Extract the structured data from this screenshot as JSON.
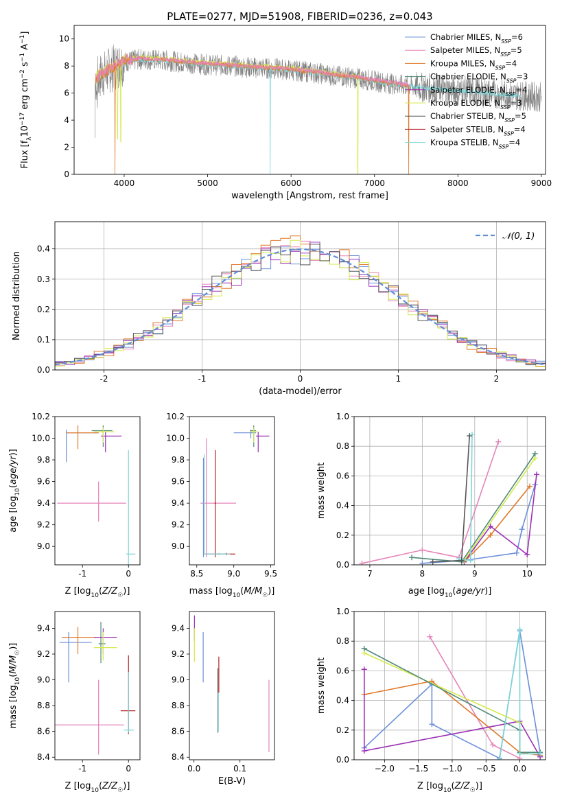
{
  "figure_title": "PLATE=0277, MJD=51908, FIBERID=0236, z=0.043",
  "colors": {
    "Chabrier MILES": "#6a8fd8",
    "Salpeter MILES": "#e584b8",
    "Kroupa MILES": "#e0782a",
    "Chabrier ELODIE": "#4f8a78",
    "Salpeter ELODIE": "#9a30b4",
    "Kroupa ELODIE": "#d4ea4c",
    "Chabrier STELIB": "#555555",
    "Salpeter STELIB": "#b22222",
    "Kroupa STELIB": "#7fd6d8"
  },
  "chart_data": [
    {
      "id": "spectrum",
      "type": "line",
      "title": "PLATE=0277, MJD=51908, FIBERID=0236, z=0.043",
      "xlabel": "wavelength [Angstrom, rest frame]",
      "ylabel": "Flux [f_λ 10^-17 erg cm^-2 s^-1 A^-1]",
      "xlim": [
        3400,
        9050
      ],
      "ylim": [
        0,
        11
      ],
      "xticks": [
        4000,
        5000,
        6000,
        7000,
        8000,
        9000
      ],
      "yticks": [
        0,
        2,
        4,
        6,
        8,
        10
      ],
      "grid": false,
      "legend_position": "top-right",
      "legend": [
        {
          "label": "Chabrier MILES, N",
          "sub": "SSP",
          "suffix": "=6",
          "model": "Chabrier MILES"
        },
        {
          "label": "Salpeter MILES, N",
          "sub": "SSP",
          "suffix": "=5",
          "model": "Salpeter MILES"
        },
        {
          "label": "Kroupa MILES, N",
          "sub": "SSP",
          "suffix": "=4",
          "model": "Kroupa MILES"
        },
        {
          "label": "Chabrier ELODIE, N",
          "sub": "SSP",
          "suffix": "=3",
          "model": "Chabrier ELODIE"
        },
        {
          "label": "Salpeter ELODIE, N",
          "sub": "SSP",
          "suffix": "=4",
          "model": "Salpeter ELODIE"
        },
        {
          "label": "Kroupa ELODIE, N",
          "sub": "SSP",
          "suffix": "=3",
          "model": "Kroupa ELODIE"
        },
        {
          "label": "Chabrier STELIB, N",
          "sub": "SSP",
          "suffix": "=5",
          "model": "Chabrier STELIB"
        },
        {
          "label": "Salpeter STELIB, N",
          "sub": "SSP",
          "suffix": "=4",
          "model": "Salpeter STELIB"
        },
        {
          "label": "Kroupa STELIB, N",
          "sub": "SSP",
          "suffix": "=4",
          "model": "Kroupa STELIB"
        }
      ],
      "data_continuum": [
        [
          3650,
          7.0
        ],
        [
          3800,
          7.6
        ],
        [
          4000,
          8.3
        ],
        [
          4200,
          8.5
        ],
        [
          4500,
          8.4
        ],
        [
          4800,
          8.2
        ],
        [
          5000,
          8.1
        ],
        [
          5300,
          8.0
        ],
        [
          5500,
          7.9
        ],
        [
          5800,
          7.8
        ],
        [
          6000,
          7.7
        ],
        [
          6300,
          7.5
        ],
        [
          6500,
          7.3
        ],
        [
          6800,
          7.1
        ],
        [
          7000,
          6.9
        ],
        [
          7300,
          6.6
        ],
        [
          7600,
          6.4
        ],
        [
          7900,
          6.2
        ],
        [
          8200,
          6.1
        ],
        [
          8500,
          5.9
        ],
        [
          8800,
          5.8
        ],
        [
          9000,
          5.7
        ]
      ],
      "data_noise_amplitude": 0.8,
      "model_series": [
        {
          "model": "Kroupa STELIB",
          "x_range": [
            3650,
            8750
          ],
          "offset": 0.0,
          "drops": [
            [
              5750,
              0
            ]
          ]
        },
        {
          "model": "Kroupa ELODIE",
          "x_range": [
            3650,
            6810
          ],
          "offset": 0.15,
          "drops": [
            [
              3920,
              2.6
            ],
            [
              3960,
              2.4
            ],
            [
              6800,
              0
            ]
          ]
        },
        {
          "model": "Kroupa MILES",
          "x_range": [
            3650,
            7420
          ],
          "offset": 0.05,
          "drops": [
            [
              3890,
              0
            ],
            [
              7410,
              0
            ]
          ]
        },
        {
          "model": "Salpeter MILES",
          "x_range": [
            3650,
            7420
          ],
          "offset": 0.1,
          "drops": []
        }
      ]
    },
    {
      "id": "residual_histogram",
      "type": "histogram",
      "xlabel": "(data-model)/error",
      "ylabel": "Normed distribution",
      "xlim": [
        -2.5,
        2.5
      ],
      "ylim": [
        0,
        0.49
      ],
      "xticks": [
        -2,
        -1,
        0,
        1,
        2
      ],
      "yticks": [
        0.0,
        0.1,
        0.2,
        0.3,
        0.4
      ],
      "grid": true,
      "legend_position": "top-right",
      "reference_curve": {
        "label": "𝒩(0, 1)",
        "mean": 0,
        "sigma": 1,
        "style": "dashed"
      },
      "bin_width": 0.1,
      "bin_start": -2.5,
      "histograms": [
        {
          "model": "Chabrier MILES",
          "jitter_seed": 1
        },
        {
          "model": "Salpeter MILES",
          "jitter_seed": 2
        },
        {
          "model": "Kroupa MILES",
          "jitter_seed": 3
        },
        {
          "model": "Salpeter ELODIE",
          "jitter_seed": 4
        },
        {
          "model": "Kroupa ELODIE",
          "jitter_seed": 5
        },
        {
          "model": "Chabrier STELIB",
          "jitter_seed": 6
        }
      ]
    },
    {
      "id": "age_vs_Z",
      "type": "errorbar",
      "xlabel": "Z [log10(Z/Z☉)]",
      "ylabel": "age  [log10(age/yr)]",
      "xlim": [
        -1.6,
        0.25
      ],
      "ylim": [
        8.83,
        10.2
      ],
      "xticks": [
        -1,
        0
      ],
      "yticks": [
        9.0,
        9.2,
        9.4,
        9.6,
        9.8,
        10.0,
        10.2
      ],
      "points": [
        {
          "model": "Chabrier MILES",
          "x": -1.35,
          "xerr": [
            0.0,
            0.7
          ],
          "y": 10.05,
          "yerr": [
            0.27,
            0.03
          ]
        },
        {
          "model": "Kroupa MILES",
          "x": -1.1,
          "xerr": [
            0.25,
            0.45
          ],
          "y": 10.05,
          "yerr": [
            0.15,
            0.07
          ]
        },
        {
          "model": "Chabrier ELODIE",
          "x": -0.55,
          "xerr": [
            0.25,
            0.2
          ],
          "y": 10.07,
          "yerr": [
            0.15,
            0.05
          ]
        },
        {
          "model": "Salpeter ELODIE",
          "x": -0.5,
          "xerr": [
            0.1,
            0.35
          ],
          "y": 10.02,
          "yerr": [
            0.15,
            0.04
          ]
        },
        {
          "model": "Kroupa ELODIE",
          "x": -0.55,
          "xerr": [
            0.2,
            0.25
          ],
          "y": 10.06,
          "yerr": [
            0.1,
            0.04
          ]
        },
        {
          "model": "Salpeter MILES",
          "x": -0.65,
          "xerr": [
            0.9,
            0.6
          ],
          "y": 9.4,
          "yerr": [
            0.17,
            0.2
          ]
        },
        {
          "model": "Kroupa STELIB",
          "x": 0.0,
          "xerr": [
            0.05,
            0.15
          ],
          "y": 8.93,
          "yerr": [
            0.1,
            0.96
          ]
        }
      ]
    },
    {
      "id": "age_vs_mass",
      "type": "errorbar",
      "xlabel": "mass [log10(M/M☉)]",
      "ylabel": "",
      "xlim": [
        8.4,
        9.55
      ],
      "ylim": [
        8.83,
        10.2
      ],
      "xticks": [
        8.5,
        9.0,
        9.5
      ],
      "yticks": [
        9.0,
        9.2,
        9.4,
        9.6,
        9.8,
        10.0,
        10.2
      ],
      "points": [
        {
          "model": "Chabrier MILES",
          "x": 9.23,
          "xerr": [
            0.23,
            0.07
          ],
          "y": 10.05,
          "yerr": [
            0.05,
            0.03
          ]
        },
        {
          "model": "Chabrier ELODIE",
          "x": 9.27,
          "xerr": [
            0.05,
            0.03
          ],
          "y": 10.07,
          "yerr": [
            0.15,
            0.05
          ]
        },
        {
          "model": "Salpeter ELODIE",
          "x": 9.33,
          "xerr": [
            0.03,
            0.15
          ],
          "y": 10.02,
          "yerr": [
            0.15,
            0.04
          ]
        },
        {
          "model": "Kroupa ELODIE",
          "x": 9.27,
          "xerr": [
            0.05,
            0.05
          ],
          "y": 10.06,
          "yerr": [
            0.1,
            0.04
          ]
        },
        {
          "model": "Salpeter MILES",
          "x": 8.63,
          "xerr": [
            0.08,
            0.4
          ],
          "y": 9.4,
          "yerr": [
            0.5,
            0.6
          ]
        },
        {
          "model": "Chabrier MILES",
          "x": 8.59,
          "xerr": [
            0.01,
            0.01
          ],
          "y": 9.4,
          "yerr": [
            0.5,
            0.42
          ]
        },
        {
          "model": "Salpeter STELIB",
          "x": 8.75,
          "xerr": [
            0.01,
            0.01
          ],
          "y": 9.4,
          "yerr": [
            0.5,
            0.49
          ]
        },
        {
          "model": "Salpeter STELIB",
          "x": 8.9,
          "xerr": [
            0.3,
            0.12
          ],
          "y": 8.93,
          "yerr": [
            0.01,
            0.01
          ]
        },
        {
          "model": "Kroupa STELIB",
          "x": 8.8,
          "xerr": [
            0.2,
            0.15
          ],
          "y": 8.93,
          "yerr": [
            0.01,
            0.01
          ]
        },
        {
          "model": "Kroupa STELIB",
          "x": 8.6,
          "xerr": [
            0.01,
            0.01
          ],
          "y": 9.4,
          "yerr": [
            0.47,
            0.45
          ]
        }
      ]
    },
    {
      "id": "weight_vs_age",
      "type": "line",
      "xlabel": "age  [log10(age/yr)]",
      "ylabel": "mass weight",
      "xlim": [
        6.7,
        10.35
      ],
      "ylim": [
        0,
        1
      ],
      "xticks": [
        7,
        8,
        9,
        10
      ],
      "yticks": [
        0.0,
        0.2,
        0.4,
        0.6,
        0.8,
        1.0
      ],
      "grid": true,
      "series": [
        {
          "model": "Salpeter MILES",
          "x": [
            6.85,
            8.0,
            8.7,
            9.45
          ],
          "y": [
            0.01,
            0.1,
            0.05,
            0.83
          ]
        },
        {
          "model": "Chabrier MILES",
          "x": [
            8.0,
            8.8,
            9.8,
            9.9,
            10.15
          ],
          "y": [
            0.01,
            0.03,
            0.08,
            0.24,
            0.54
          ]
        },
        {
          "model": "Kroupa MILES",
          "x": [
            8.8,
            9.3,
            10.05
          ],
          "y": [
            0.02,
            0.2,
            0.53
          ]
        },
        {
          "model": "Salpeter ELODIE",
          "x": [
            8.8,
            9.3,
            10.0,
            10.18
          ],
          "y": [
            0.02,
            0.26,
            0.07,
            0.61
          ]
        },
        {
          "model": "Kroupa ELODIE",
          "x": [
            8.8,
            10.15
          ],
          "y": [
            0.03,
            0.72
          ]
        },
        {
          "model": "Chabrier ELODIE",
          "x": [
            7.8,
            8.75,
            10.15
          ],
          "y": [
            0.05,
            0.02,
            0.75
          ]
        },
        {
          "model": "Kroupa STELIB",
          "x": [
            8.7,
            8.92,
            8.95
          ],
          "y": [
            0.04,
            0.03,
            0.88
          ]
        },
        {
          "model": "Chabrier STELIB",
          "x": [
            8.2,
            8.75,
            8.9
          ],
          "y": [
            0.02,
            0.03,
            0.87
          ]
        }
      ]
    },
    {
      "id": "mass_vs_Z",
      "type": "errorbar",
      "xlabel": "Z [log10(Z/Z☉)]",
      "ylabel": "mass [log10(M/M☉)]",
      "xlim": [
        -1.6,
        0.25
      ],
      "ylim": [
        8.38,
        9.53
      ],
      "xticks": [
        -1,
        0
      ],
      "yticks": [
        8.4,
        8.6,
        8.8,
        9.0,
        9.2,
        9.4
      ],
      "points": [
        {
          "model": "Chabrier MILES",
          "x": -1.3,
          "xerr": [
            0.2,
            0.5
          ],
          "y": 9.29,
          "yerr": [
            0.31,
            0.08
          ]
        },
        {
          "model": "Kroupa MILES",
          "x": -1.1,
          "xerr": [
            0.35,
            0.4
          ],
          "y": 9.33,
          "yerr": [
            0.13,
            0.08
          ]
        },
        {
          "model": "Chabrier ELODIE",
          "x": -0.6,
          "xerr": [
            0.05,
            0.1
          ],
          "y": 9.28,
          "yerr": [
            0.15,
            0.17
          ]
        },
        {
          "model": "Salpeter ELODIE",
          "x": -0.55,
          "xerr": [
            0.2,
            0.3
          ],
          "y": 9.33,
          "yerr": [
            0.13,
            0.07
          ]
        },
        {
          "model": "Kroupa ELODIE",
          "x": -0.55,
          "xerr": [
            0.2,
            0.3
          ],
          "y": 9.25,
          "yerr": [
            0.1,
            0.12
          ]
        },
        {
          "model": "Salpeter MILES",
          "x": -0.65,
          "xerr": [
            0.95,
            0.55
          ],
          "y": 8.65,
          "yerr": [
            0.23,
            0.35
          ]
        },
        {
          "model": "Salpeter STELIB",
          "x": 0.0,
          "xerr": [
            0.17,
            0.15
          ],
          "y": 8.76,
          "yerr": [
            0.18,
            0.43
          ]
        },
        {
          "model": "Kroupa STELIB",
          "x": 0.0,
          "xerr": [
            0.1,
            0.12
          ],
          "y": 8.61,
          "yerr": [
            0.02,
            0.45
          ]
        }
      ]
    },
    {
      "id": "mass_vs_EBV",
      "type": "errorbar",
      "xlabel": "E(B-V)",
      "ylabel": "",
      "xlim": [
        -0.01,
        0.175
      ],
      "ylim": [
        8.38,
        9.53
      ],
      "xticks": [
        0.0,
        0.1
      ],
      "yticks": [
        8.4,
        8.6,
        8.8,
        9.0,
        9.2,
        9.4
      ],
      "points": [
        {
          "model": "Salpeter ELODIE",
          "x": 0.001,
          "xerr": [
            0,
            0
          ],
          "y": 9.4,
          "yerr": [
            0.1,
            0.1
          ]
        },
        {
          "model": "Kroupa ELODIE",
          "x": 0.001,
          "xerr": [
            0,
            0
          ],
          "y": 9.28,
          "yerr": [
            0.14,
            0.12
          ]
        },
        {
          "model": "Chabrier MILES",
          "x": 0.02,
          "xerr": [
            0,
            0
          ],
          "y": 9.17,
          "yerr": [
            0.19,
            0.2
          ]
        },
        {
          "model": "Chabrier STELIB",
          "x": 0.052,
          "xerr": [
            0,
            0
          ],
          "y": 8.84,
          "yerr": [
            0.25,
            0.25
          ]
        },
        {
          "model": "Salpeter STELIB",
          "x": 0.054,
          "xerr": [
            0,
            0
          ],
          "y": 9.0,
          "yerr": [
            0.1,
            0.18
          ]
        },
        {
          "model": "Kroupa STELIB",
          "x": 0.053,
          "xerr": [
            0,
            0
          ],
          "y": 8.75,
          "yerr": [
            0.15,
            0.15
          ]
        },
        {
          "model": "Salpeter MILES",
          "x": 0.163,
          "xerr": [
            0,
            0
          ],
          "y": 8.72,
          "yerr": [
            0.28,
            0.28
          ]
        }
      ]
    },
    {
      "id": "weight_vs_Z",
      "type": "line",
      "xlabel": "Z [log10(Z/Z☉)]",
      "ylabel": "mass weight",
      "xlim": [
        -2.45,
        0.38
      ],
      "ylim": [
        0,
        1
      ],
      "xticks": [
        -2.0,
        -1.5,
        -1.0,
        -0.5,
        0.0
      ],
      "yticks": [
        0.0,
        0.2,
        0.4,
        0.6,
        0.8,
        1.0
      ],
      "grid": true,
      "series": [
        {
          "model": "Chabrier MILES",
          "x": [
            -2.3,
            -1.3,
            -1.3,
            -0.3,
            0.0,
            0.3
          ],
          "y": [
            0.08,
            0.51,
            0.24,
            0.01,
            0.87,
            0.05
          ]
        },
        {
          "model": "Salpeter MILES",
          "x": [
            -1.33,
            -0.4,
            0.0
          ],
          "y": [
            0.83,
            0.1,
            0.01
          ]
        },
        {
          "model": "Kroupa MILES",
          "x": [
            -2.3,
            -1.3,
            0.0,
            0.3
          ],
          "y": [
            0.44,
            0.53,
            0.05,
            0.03
          ]
        },
        {
          "model": "Salpeter ELODIE",
          "x": [
            -2.3,
            -2.3,
            0.0,
            0.3
          ],
          "y": [
            0.61,
            0.06,
            0.26,
            0.02
          ]
        },
        {
          "model": "Kroupa ELODIE",
          "x": [
            -2.3,
            0.0
          ],
          "y": [
            0.72,
            0.25
          ]
        },
        {
          "model": "Chabrier ELODIE",
          "x": [
            -2.3,
            0.0,
            0.0,
            0.3
          ],
          "y": [
            0.75,
            0.2,
            0.05,
            0.05
          ]
        },
        {
          "model": "Kroupa STELIB",
          "x": [
            -0.3,
            0.0,
            0.0,
            0.3
          ],
          "y": [
            0.0,
            0.88,
            0.04,
            0.04
          ]
        }
      ]
    }
  ]
}
